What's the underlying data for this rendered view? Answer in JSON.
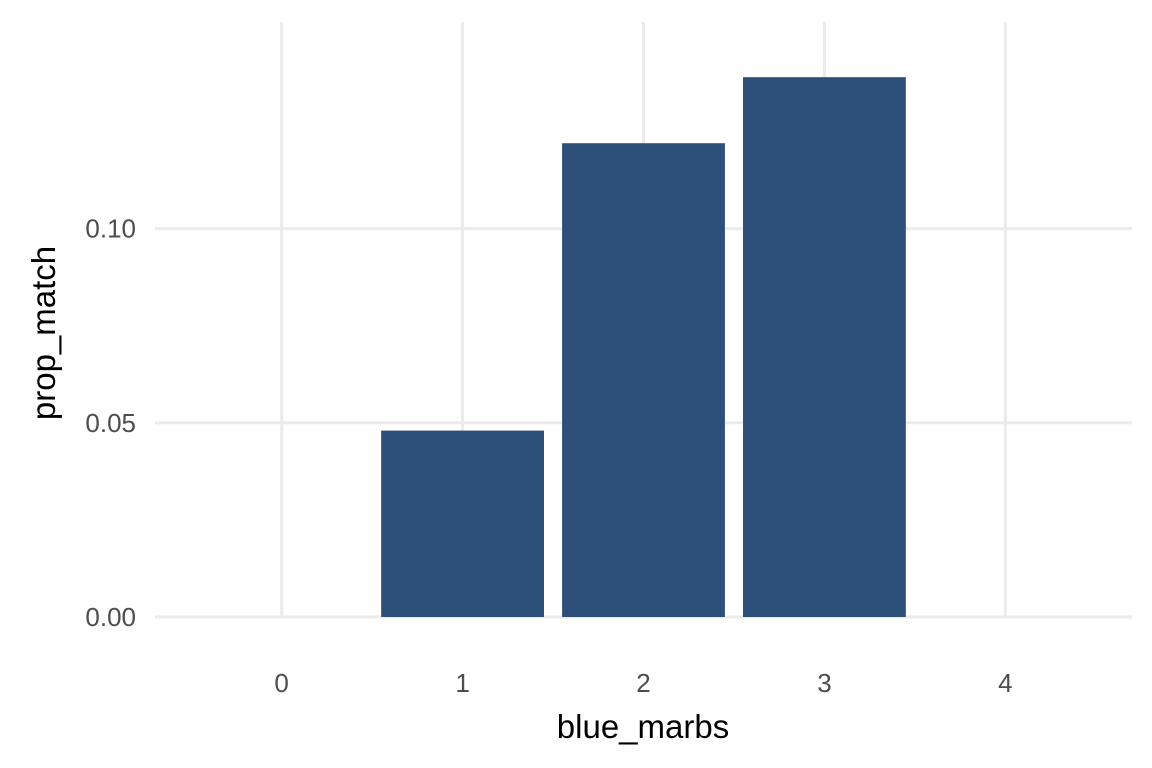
{
  "chart_data": {
    "type": "bar",
    "x": [
      1,
      2,
      3
    ],
    "values": [
      0.048,
      0.122,
      0.139
    ],
    "xlabel": "blue_marbs",
    "ylabel": "prop_match",
    "xlim": [
      -0.7,
      4.7
    ],
    "ylim": [
      0,
      0.146
    ],
    "x_ticks": [
      0,
      1,
      2,
      3,
      4
    ],
    "x_tick_labels": [
      "0",
      "1",
      "2",
      "3",
      "4"
    ],
    "y_ticks": [
      0,
      0.05,
      0.1
    ],
    "y_tick_labels": [
      "0.00",
      "0.05",
      "0.10"
    ],
    "grid": true,
    "bar_color": "#2c5079"
  }
}
